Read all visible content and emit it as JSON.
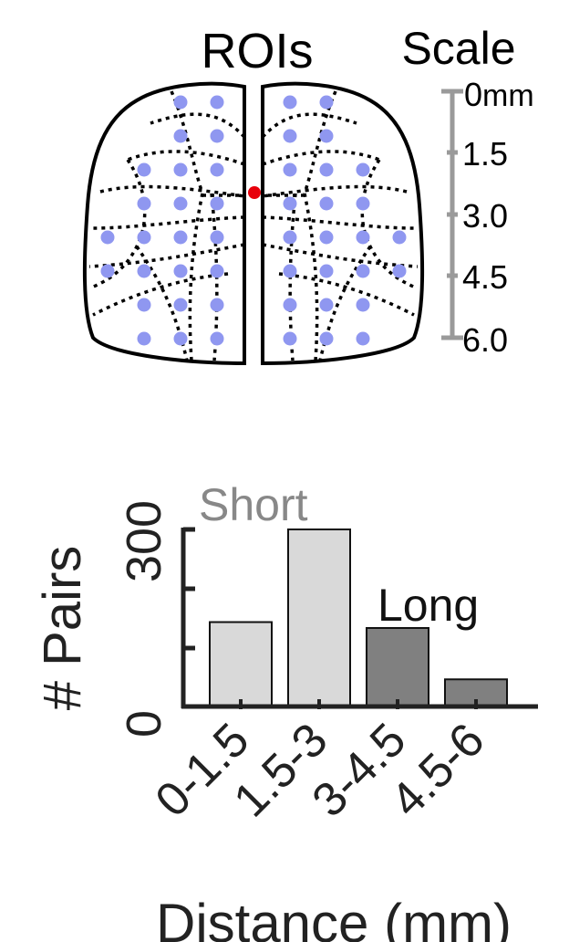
{
  "roi_panel": {
    "title": "ROIs",
    "scale_title": "Scale",
    "scale_unit": "mm",
    "scale_ticks": [
      "0",
      "1.5",
      "3.0",
      "4.5",
      "6.0"
    ],
    "colors": {
      "roi_dot": "#8f97f0",
      "bregma_dot": "#e8000b",
      "scale_bar": "#9a9a9a",
      "outline": "#000000"
    }
  },
  "chart_data": {
    "type": "bar",
    "categories": [
      "0-1.5",
      "1.5-3",
      "3-4.5",
      "4.5-6"
    ],
    "values": [
      143,
      300,
      133,
      46
    ],
    "bar_colors": [
      "#d9d9d9",
      "#d9d9d9",
      "#808080",
      "#808080"
    ],
    "ylim": [
      0,
      300
    ],
    "yticks": [
      "0",
      "300"
    ],
    "ylabel": "# Pairs",
    "xlabel": "Distance (mm)",
    "annotations": [
      {
        "text": "Short",
        "color": "#888888"
      },
      {
        "text": "Long",
        "color": "#111111"
      }
    ]
  }
}
